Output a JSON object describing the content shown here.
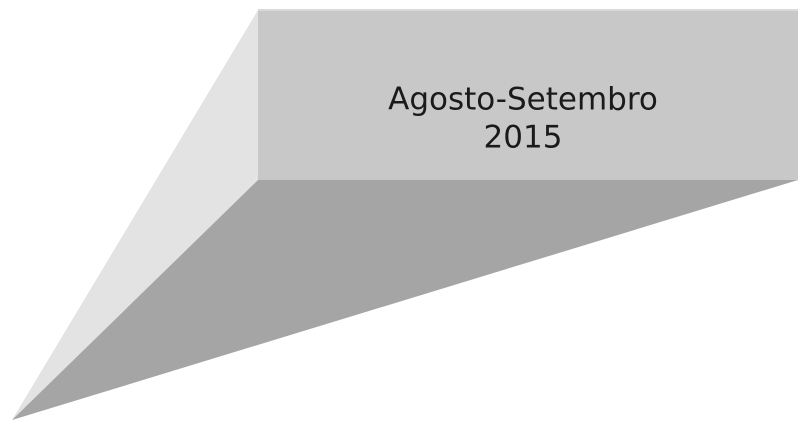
{
  "banner": {
    "lines": [
      "Agosto-Setembro",
      "2015"
    ]
  }
}
